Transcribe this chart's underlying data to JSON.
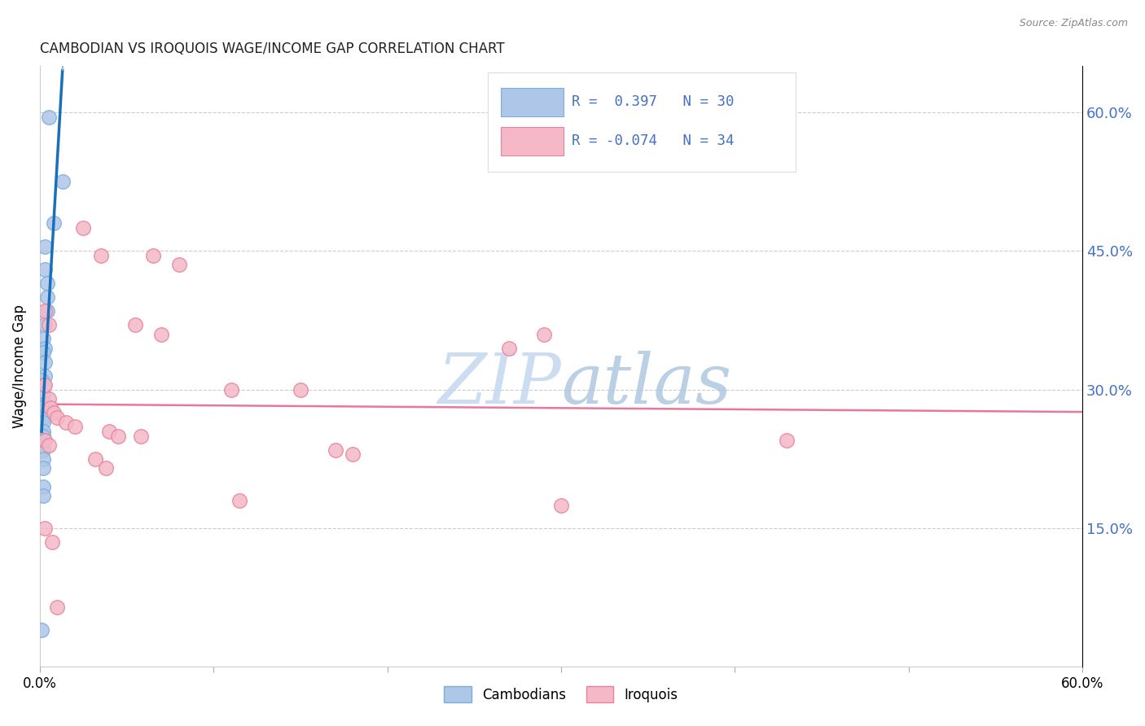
{
  "title": "CAMBODIAN VS IROQUOIS WAGE/INCOME GAP CORRELATION CHART",
  "source": "Source: ZipAtlas.com",
  "ylabel": "Wage/Income Gap",
  "ytick_labels": [
    "15.0%",
    "30.0%",
    "45.0%",
    "60.0%"
  ],
  "ytick_values": [
    0.15,
    0.3,
    0.45,
    0.6
  ],
  "legend_label1": "Cambodians",
  "legend_label2": "Iroquois",
  "R1": 0.397,
  "N1": 30,
  "R2": -0.074,
  "N2": 34,
  "cambodian_x": [
    0.005,
    0.013,
    0.008,
    0.003,
    0.003,
    0.004,
    0.004,
    0.004,
    0.003,
    0.002,
    0.003,
    0.002,
    0.003,
    0.003,
    0.001,
    0.002,
    0.002,
    0.003,
    0.001,
    0.002,
    0.002,
    0.002,
    0.002,
    0.002,
    0.002,
    0.002,
    0.002,
    0.002,
    0.002,
    0.001
  ],
  "cambodian_y": [
    0.595,
    0.525,
    0.48,
    0.455,
    0.43,
    0.415,
    0.4,
    0.385,
    0.37,
    0.355,
    0.345,
    0.34,
    0.33,
    0.315,
    0.31,
    0.305,
    0.295,
    0.285,
    0.28,
    0.27,
    0.265,
    0.255,
    0.25,
    0.245,
    0.235,
    0.225,
    0.215,
    0.195,
    0.185,
    0.04
  ],
  "iroquois_x": [
    0.025,
    0.035,
    0.065,
    0.08,
    0.003,
    0.005,
    0.055,
    0.07,
    0.11,
    0.15,
    0.27,
    0.29,
    0.003,
    0.005,
    0.006,
    0.008,
    0.01,
    0.015,
    0.02,
    0.04,
    0.045,
    0.058,
    0.003,
    0.005,
    0.17,
    0.18,
    0.032,
    0.038,
    0.115,
    0.3,
    0.43,
    0.003,
    0.007,
    0.01
  ],
  "iroquois_y": [
    0.475,
    0.445,
    0.445,
    0.435,
    0.385,
    0.37,
    0.37,
    0.36,
    0.3,
    0.3,
    0.345,
    0.36,
    0.305,
    0.29,
    0.28,
    0.275,
    0.27,
    0.265,
    0.26,
    0.255,
    0.25,
    0.25,
    0.245,
    0.24,
    0.235,
    0.23,
    0.225,
    0.215,
    0.18,
    0.175,
    0.245,
    0.15,
    0.135,
    0.065
  ],
  "xlim": [
    0.0,
    0.6
  ],
  "ylim": [
    0.0,
    0.65
  ],
  "bg_color": "#ffffff",
  "cambodian_color": "#aec6e8",
  "cambodian_edge": "#7aafda",
  "iroquois_color": "#f4b8c8",
  "iroquois_edge": "#e8829a",
  "line_blue": "#1a6fba",
  "line_pink": "#e8789a",
  "watermark_zip_color": "#c8d8ee",
  "watermark_atlas_color": "#b8c8de",
  "grid_color": "#cccccc",
  "right_axis_color": "#4472c4",
  "title_color": "#222222",
  "source_color": "#888888"
}
